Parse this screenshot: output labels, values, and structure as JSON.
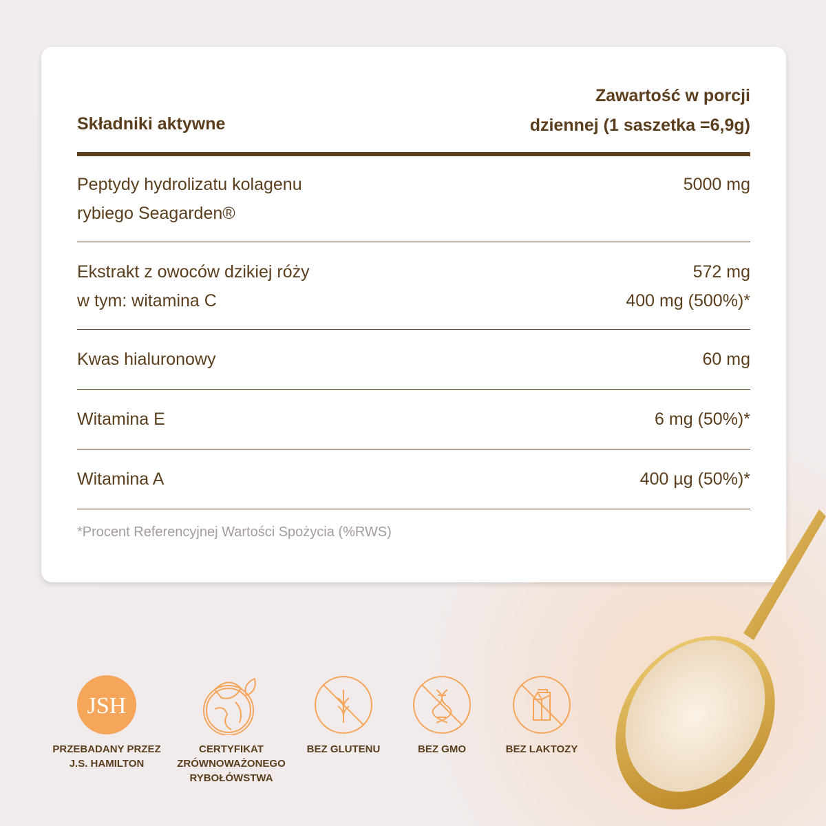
{
  "colors": {
    "text": "#5a3e1e",
    "accent": "#f5a65b",
    "footnote": "#a49c98"
  },
  "table": {
    "header_left": "Składniki aktywne",
    "header_right": [
      "Zawartość w porcji",
      "dziennej (1 saszetka =6,9g)"
    ],
    "rows": [
      {
        "name": [
          "Peptydy hydrolizatu kolagenu",
          "rybiego Seagarden®"
        ],
        "value": [
          "5000 mg"
        ]
      },
      {
        "name": [
          "Ekstrakt z owoców dzikiej róży",
          "w tym: witamina C"
        ],
        "value": [
          "572 mg",
          "400 mg (500%)*"
        ]
      },
      {
        "name": [
          "Kwas hialuronowy"
        ],
        "value": [
          "60 mg"
        ]
      },
      {
        "name": [
          "Witamina E"
        ],
        "value": [
          "6 mg  (50%)*"
        ]
      },
      {
        "name": [
          "Witamina A"
        ],
        "value": [
          "400 µg (50%)*"
        ]
      }
    ],
    "footnote": "*Procent Referencyjnej Wartości Spożycia (%RWS)"
  },
  "badges": [
    {
      "icon": "jsh-logo-icon",
      "label": [
        "PRZEBADANY PRZEZ",
        "J.S. HAMILTON"
      ],
      "logo_text": "JSH"
    },
    {
      "icon": "earth-leaf-icon",
      "label": [
        "CERTYFIKAT",
        "ZRÓWNOWAŻONEGO",
        "RYBOŁÓWSTWA"
      ]
    },
    {
      "icon": "no-gluten-icon",
      "label": [
        "BEZ GLUTENU"
      ]
    },
    {
      "icon": "no-gmo-icon",
      "label": [
        "BEZ GMO"
      ]
    },
    {
      "icon": "no-lactose-icon",
      "label": [
        "BEZ LAKTOZY"
      ]
    }
  ]
}
